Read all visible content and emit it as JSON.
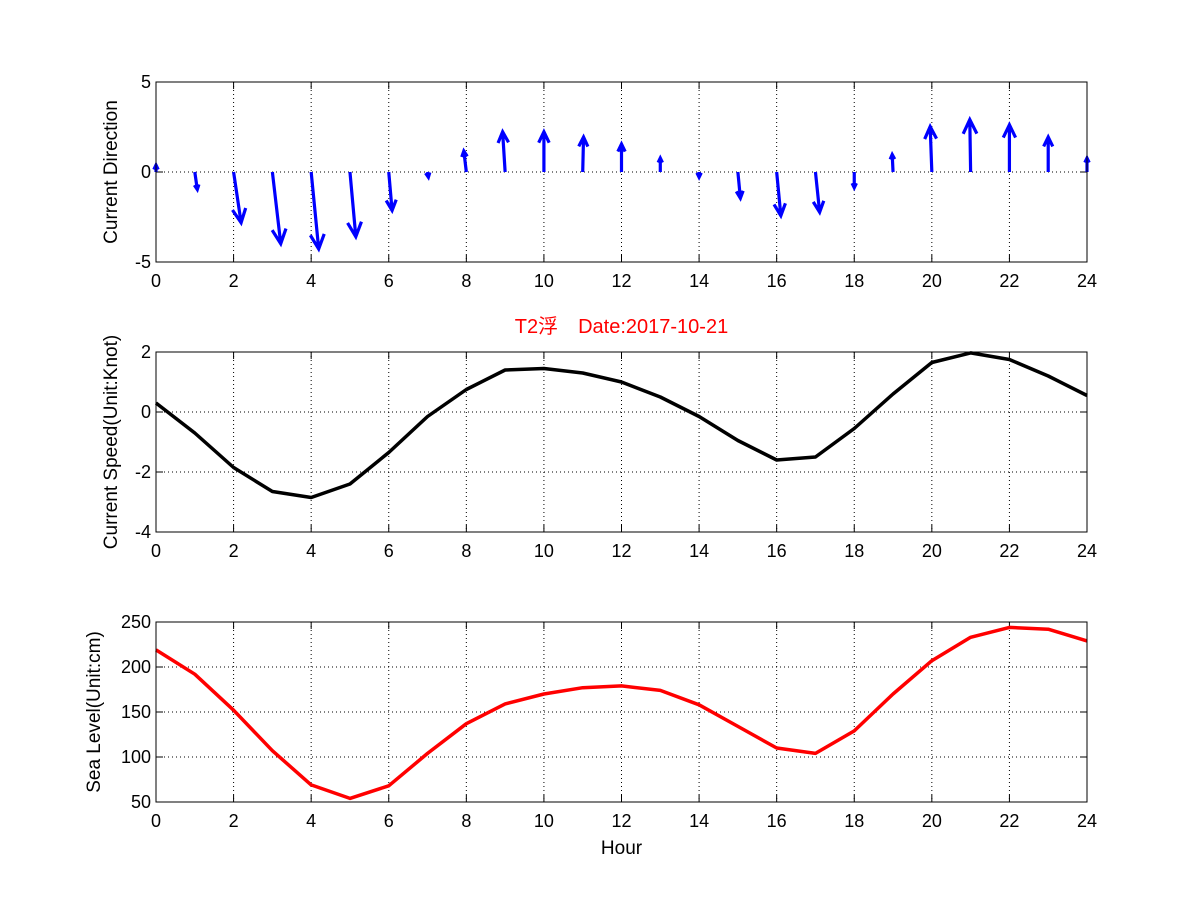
{
  "figure": {
    "title": "T2浮　Date:2017-10-21",
    "title_color": "#ff0000"
  },
  "chart_data": [
    {
      "type": "quiver",
      "ylabel": "Current Direction",
      "xlabel": "",
      "xlim": [
        0,
        24
      ],
      "ylim": [
        -5,
        5
      ],
      "xticks": [
        "0",
        "2",
        "4",
        "6",
        "8",
        "10",
        "12",
        "14",
        "16",
        "18",
        "20",
        "22",
        "24"
      ],
      "yticks": [
        "-5",
        "0",
        "5"
      ],
      "grid": true,
      "color": "#0000ff",
      "x": [
        0,
        1,
        2,
        3,
        4,
        5,
        6,
        7,
        8,
        9,
        10,
        11,
        12,
        13,
        14,
        15,
        16,
        17,
        18,
        19,
        20,
        21,
        22,
        23,
        24
      ],
      "u": [
        0.0,
        0.15,
        0.45,
        0.5,
        0.45,
        0.35,
        0.2,
        0.05,
        -0.15,
        -0.15,
        0.0,
        0.05,
        0.0,
        0.0,
        0.0,
        0.15,
        0.25,
        0.25,
        0.0,
        -0.05,
        -0.1,
        -0.05,
        0.0,
        0.0,
        0.0
      ],
      "v": [
        0.4,
        -1.0,
        -2.9,
        -4.1,
        -4.4,
        -3.7,
        -2.2,
        -0.3,
        1.2,
        2.3,
        2.3,
        2.0,
        1.6,
        0.8,
        -0.3,
        -1.5,
        -2.5,
        -2.3,
        -0.9,
        1.0,
        2.6,
        3.0,
        2.7,
        2.0,
        0.8
      ]
    },
    {
      "type": "line",
      "ylabel": "Current Speed(Unit:Knot)",
      "xlabel": "",
      "xlim": [
        0,
        24
      ],
      "ylim": [
        -4,
        2
      ],
      "xticks": [
        "0",
        "2",
        "4",
        "6",
        "8",
        "10",
        "12",
        "14",
        "16",
        "18",
        "20",
        "22",
        "24"
      ],
      "yticks": [
        "-4",
        "-2",
        "0",
        "2"
      ],
      "grid": true,
      "x": [
        0,
        1,
        2,
        3,
        4,
        5,
        6,
        7,
        8,
        9,
        10,
        11,
        12,
        13,
        14,
        15,
        16,
        17,
        18,
        19,
        20,
        21,
        22,
        23,
        24
      ],
      "series": [
        {
          "color": "#000000",
          "values": [
            0.3,
            -0.7,
            -1.85,
            -2.65,
            -2.85,
            -2.4,
            -1.35,
            -0.15,
            0.75,
            1.4,
            1.45,
            1.3,
            1.0,
            0.5,
            -0.15,
            -0.95,
            -1.6,
            -1.5,
            -0.55,
            0.6,
            1.65,
            1.97,
            1.75,
            1.2,
            0.55
          ]
        }
      ]
    },
    {
      "type": "line",
      "ylabel": "Sea Level(Unit:cm)",
      "xlabel": "Hour",
      "xlim": [
        0,
        24
      ],
      "ylim": [
        50,
        250
      ],
      "xticks": [
        "0",
        "2",
        "4",
        "6",
        "8",
        "10",
        "12",
        "14",
        "16",
        "18",
        "20",
        "22",
        "24"
      ],
      "yticks": [
        "50",
        "100",
        "150",
        "200",
        "250"
      ],
      "grid": true,
      "x": [
        0,
        1,
        2,
        3,
        4,
        5,
        6,
        7,
        8,
        9,
        10,
        11,
        12,
        13,
        14,
        15,
        16,
        17,
        18,
        19,
        20,
        21,
        22,
        23,
        24
      ],
      "series": [
        {
          "color": "#ff0000",
          "values": [
            219,
            192,
            152,
            107,
            69,
            54,
            68,
            104,
            137,
            159,
            170,
            177,
            179,
            174,
            158,
            134,
            110,
            104,
            129,
            170,
            207,
            233,
            244,
            242,
            229
          ]
        }
      ]
    }
  ]
}
